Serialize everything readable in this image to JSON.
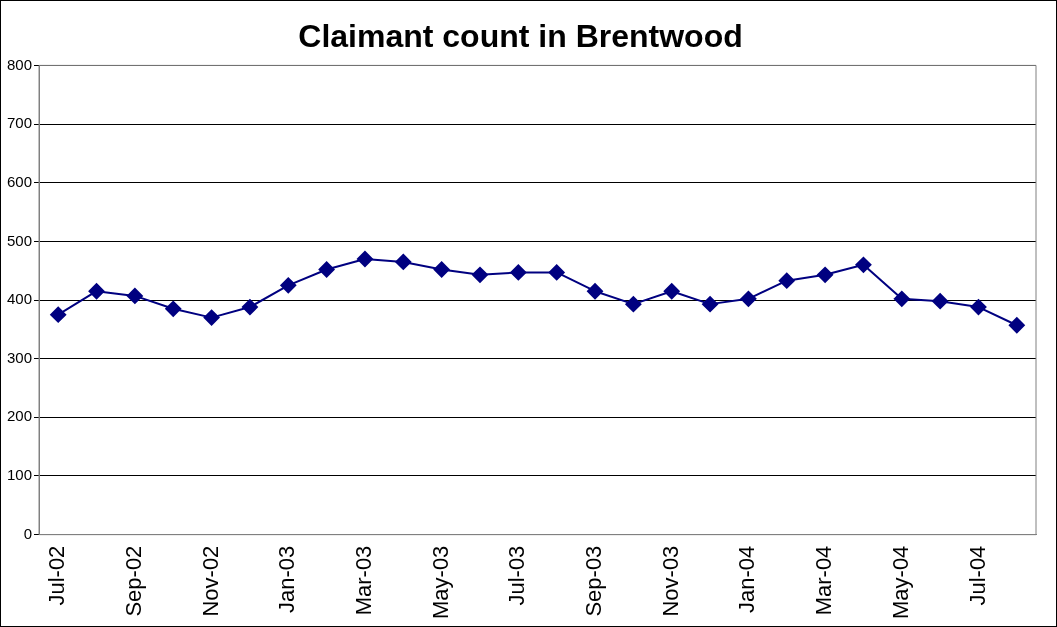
{
  "chart_data": {
    "type": "line",
    "title": "Claimant count in Brentwood",
    "categories": [
      "Jul-02",
      null,
      "Sep-02",
      null,
      "Nov-02",
      null,
      "Jan-03",
      null,
      "Mar-03",
      null,
      "May-03",
      null,
      "Jul-03",
      null,
      "Sep-03",
      null,
      "Nov-03",
      null,
      "Jan-04",
      null,
      "Mar-04",
      null,
      "May-04",
      null,
      "Jul-04",
      null
    ],
    "series": [
      {
        "color": "#000080",
        "values": [
          375,
          415,
          407,
          385,
          370,
          388,
          425,
          452,
          470,
          465,
          452,
          443,
          447,
          447,
          415,
          393,
          415,
          393,
          402,
          433,
          443,
          460,
          402,
          398,
          388,
          357
        ]
      }
    ],
    "ylim": [
      0,
      800
    ],
    "yticks": [
      0,
      100,
      200,
      300,
      400,
      500,
      600,
      700,
      800
    ],
    "grid": "y",
    "legend": false,
    "marker": "diamond",
    "line_style": "solid"
  }
}
